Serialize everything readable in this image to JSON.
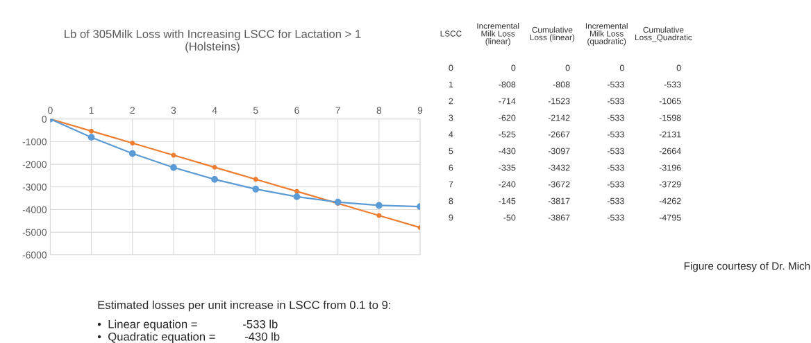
{
  "chart_data": {
    "type": "line",
    "title": "Lb of 305Milk Loss with Increasing LSCC for Lactation > 1\n(Holsteins)",
    "x": [
      0,
      1,
      2,
      3,
      4,
      5,
      6,
      7,
      8,
      9
    ],
    "series": [
      {
        "color": "#5b9bd5",
        "values": [
          0,
          -808,
          -1523,
          -2142,
          -2667,
          -3097,
          -3432,
          -3672,
          -3817,
          -3867
        ]
      },
      {
        "color": "#ed7d31",
        "values": [
          0,
          -533,
          -1065,
          -1598,
          -2131,
          -2664,
          -3196,
          -3729,
          -4262,
          -4795
        ]
      }
    ],
    "xlim": [
      0,
      9
    ],
    "xticks": [
      0,
      1,
      2,
      3,
      4,
      5,
      6,
      7,
      8,
      9
    ],
    "ylim": [
      -6000,
      0
    ],
    "yticks": [
      -6000,
      -5000,
      -4000,
      -3000,
      -2000,
      -1000,
      0
    ],
    "grid": true,
    "marker": "circle",
    "line_style": "solid",
    "legend": false,
    "annotations": [
      "Estimated losses per unit increase in LSCC from 0.1 to 9:",
      "•  Linear equation =              -533 lb",
      "•  Quadratic equation =         -430 lb",
      "Figure courtesy of Dr. Mich",
      "LSCC",
      "Incremental\nMilk Loss\n(linear)",
      "Cumulative\nLoss (linear)",
      "Incremental\nMilk Loss\n(quadratic)",
      "Cumulative\nLoss_Quadratic",
      "0",
      "0",
      "0",
      "0",
      "0",
      "1",
      "-808",
      "-808",
      "-533",
      "-533",
      "2",
      "-714",
      "-1523",
      "-533",
      "-1065",
      "3",
      "-620",
      "-2142",
      "-533",
      "-1598",
      "4",
      "-525",
      "-2667",
      "-533",
      "-2131",
      "5",
      "-430",
      "-3097",
      "-533",
      "-2664",
      "6",
      "-335",
      "-3432",
      "-533",
      "-3196",
      "7",
      "-240",
      "-3672",
      "-533",
      "-3729",
      "8",
      "-145",
      "-3817",
      "-533",
      "-4262",
      "9",
      "-50",
      "-3867",
      "-533",
      "-4795"
    ]
  }
}
